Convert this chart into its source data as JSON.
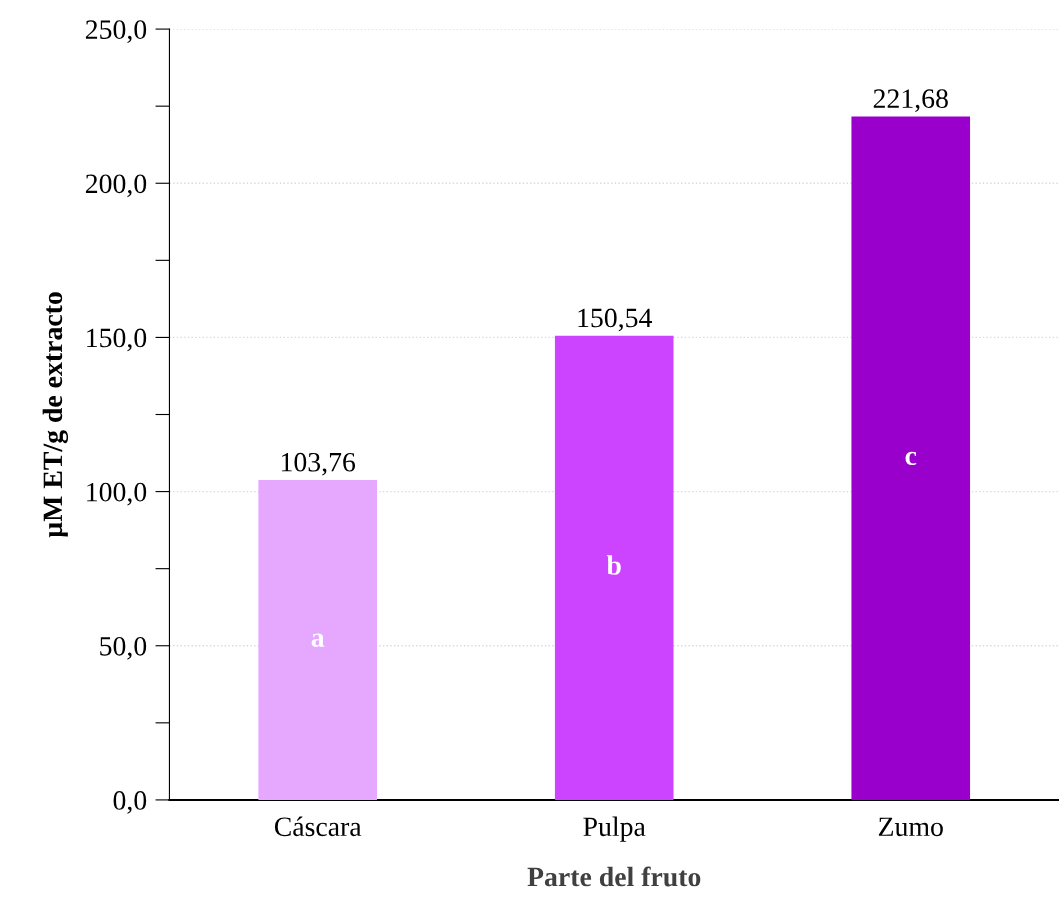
{
  "chart_data": {
    "type": "bar",
    "xlabel": "Parte del fruto",
    "ylabel": "µM ET/g de extracto",
    "categories": [
      "Cáscara",
      "Pulpa",
      "Zumo"
    ],
    "values": [
      103.76,
      150.54,
      221.68
    ],
    "colors": [
      "#e6a8ff",
      "#cc44ff",
      "#9900cc"
    ],
    "value_labels": [
      "103,76",
      "150,54",
      "221,68"
    ],
    "ylim": [
      0,
      250
    ],
    "yticks": [
      {
        "value": 0,
        "label": "0,0"
      },
      {
        "value": 25,
        "label": null
      },
      {
        "value": 50,
        "label": "50,0"
      },
      {
        "value": 75,
        "label": null
      },
      {
        "value": 100,
        "label": "100,0"
      },
      {
        "value": 125,
        "label": null
      },
      {
        "value": 150,
        "label": "150,0"
      },
      {
        "value": 175,
        "label": null
      },
      {
        "value": 200,
        "label": "200,0"
      },
      {
        "value": 225,
        "label": null
      },
      {
        "value": 250,
        "label": "250,0"
      }
    ],
    "grid": "y",
    "annotations": [
      "a",
      "b",
      "c"
    ]
  }
}
